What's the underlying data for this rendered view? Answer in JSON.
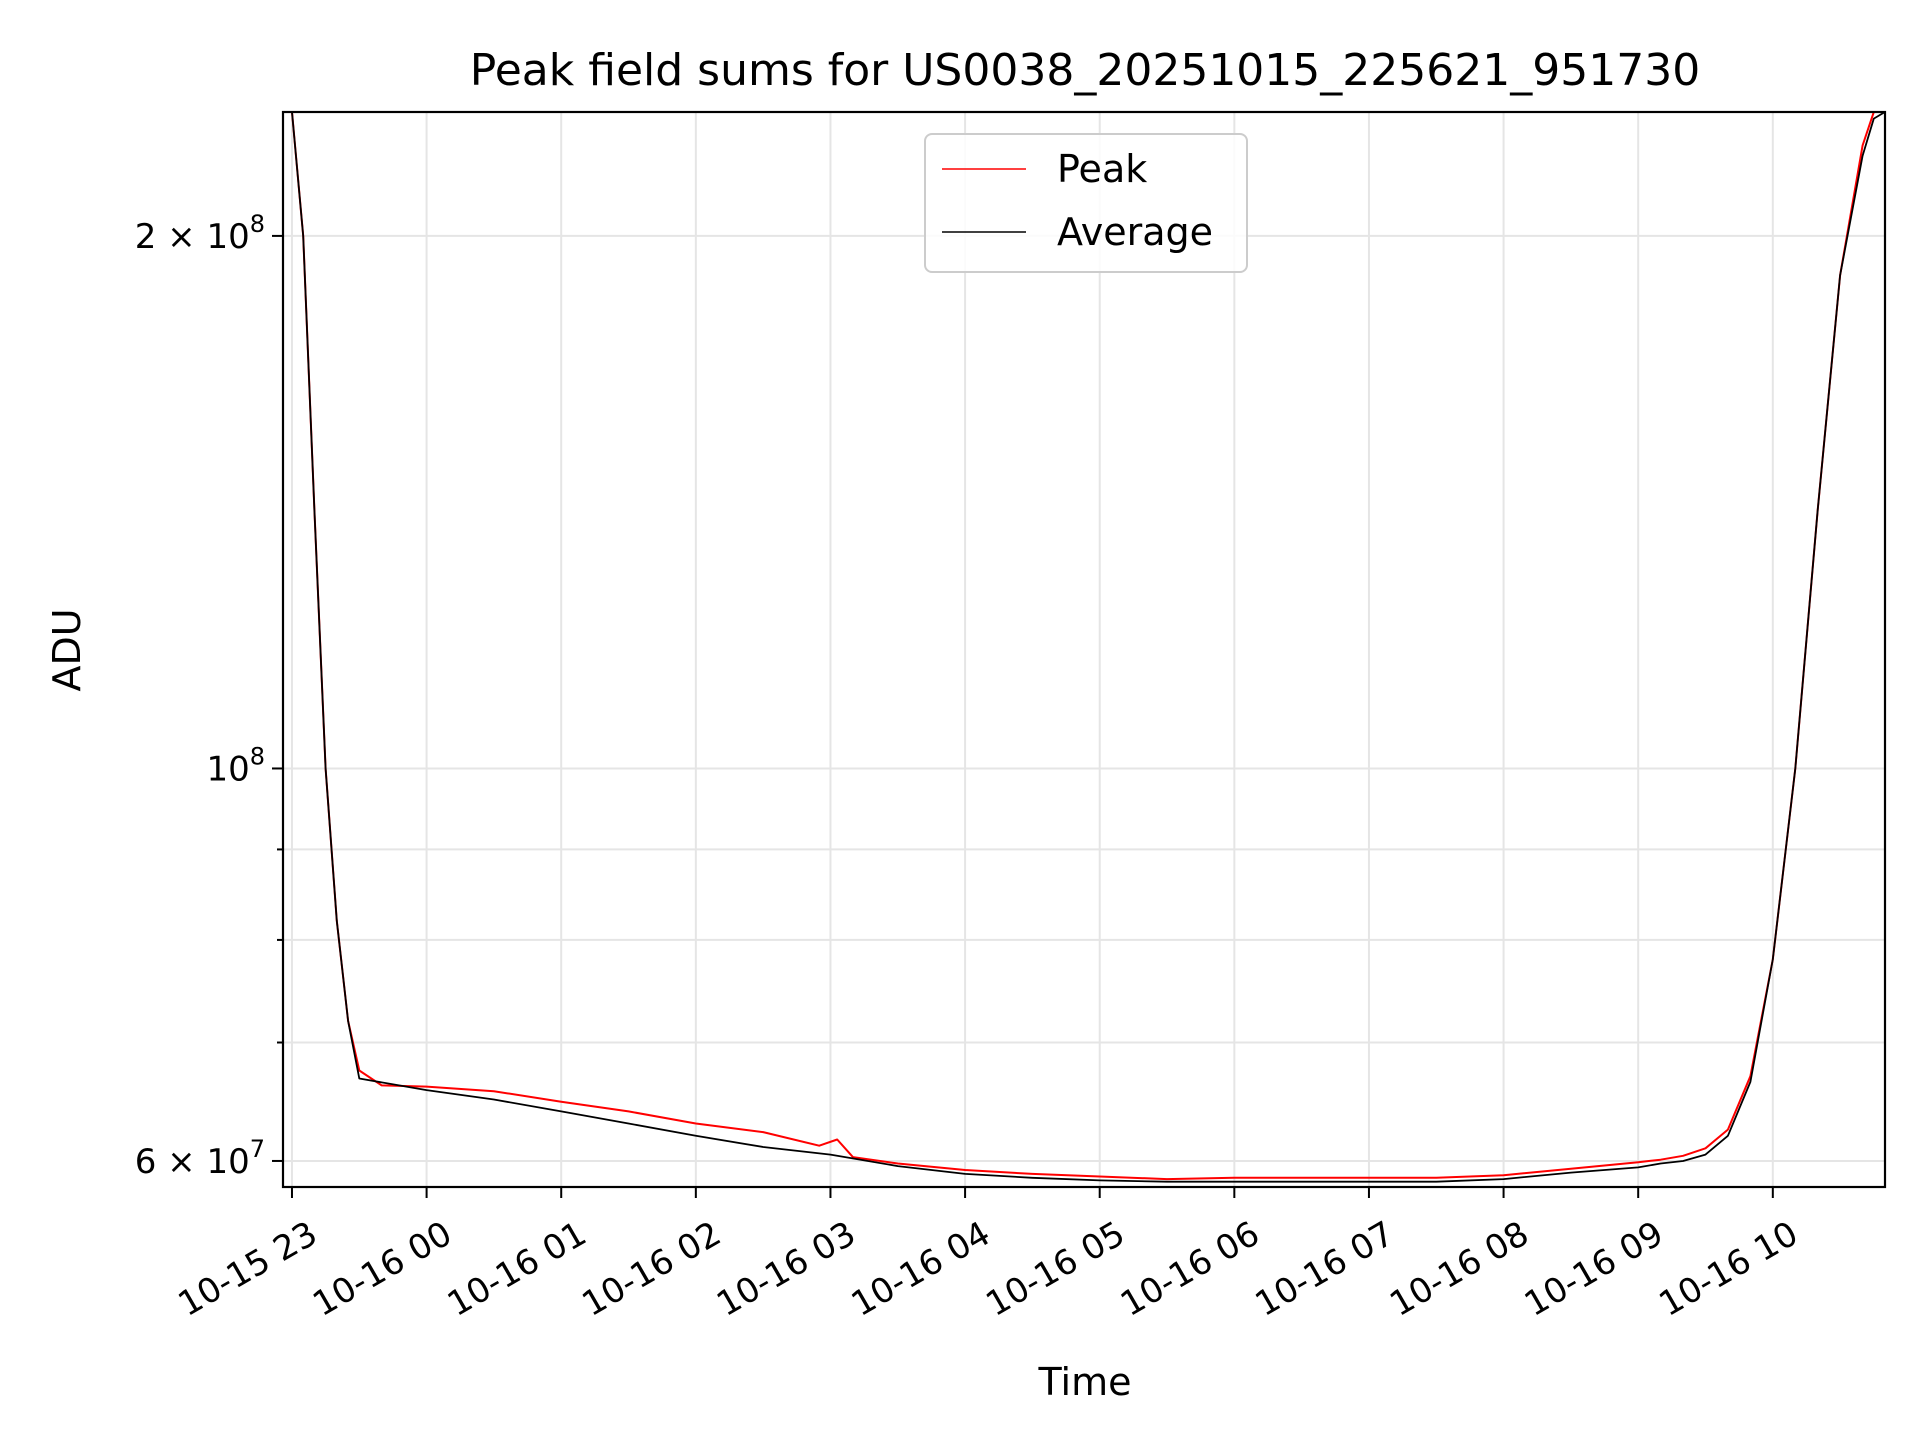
{
  "chart_data": {
    "type": "line",
    "title": "Peak field sums for US0038_20251015_225621_951730",
    "xlabel": "Time",
    "ylabel": "ADU",
    "yscale": "log",
    "ylim": [
      58000000,
      235000000
    ],
    "xlim": [
      "2025-10-15 22:56",
      "2025-10-16 10:50"
    ],
    "grid": true,
    "legend_position": "upper center",
    "x_ticks": [
      {
        "t": "2025-10-15 23:00",
        "label": "10-15 23"
      },
      {
        "t": "2025-10-16 00:00",
        "label": "10-16 00"
      },
      {
        "t": "2025-10-16 01:00",
        "label": "10-16 01"
      },
      {
        "t": "2025-10-16 02:00",
        "label": "10-16 02"
      },
      {
        "t": "2025-10-16 03:00",
        "label": "10-16 03"
      },
      {
        "t": "2025-10-16 04:00",
        "label": "10-16 04"
      },
      {
        "t": "2025-10-16 05:00",
        "label": "10-16 05"
      },
      {
        "t": "2025-10-16 06:00",
        "label": "10-16 06"
      },
      {
        "t": "2025-10-16 07:00",
        "label": "10-16 07"
      },
      {
        "t": "2025-10-16 08:00",
        "label": "10-16 08"
      },
      {
        "t": "2025-10-16 09:00",
        "label": "10-16 09"
      },
      {
        "t": "2025-10-16 10:00",
        "label": "10-16 10"
      }
    ],
    "y_major_ticks": [
      {
        "value": 60000000,
        "base": "6",
        "exp": "7",
        "mult": true
      },
      {
        "value": 100000000,
        "base": "",
        "exp": "8",
        "mult": false
      },
      {
        "value": 200000000,
        "base": "2",
        "exp": "8",
        "mult": true
      }
    ],
    "y_minor_ticks": [
      70000000,
      80000000,
      90000000
    ],
    "series": [
      {
        "name": "Peak",
        "color": "#ff0000",
        "x": [
          "2025-10-15 22:56",
          "2025-10-15 23:00",
          "2025-10-15 23:05",
          "2025-10-15 23:10",
          "2025-10-15 23:15",
          "2025-10-15 23:20",
          "2025-10-15 23:25",
          "2025-10-15 23:30",
          "2025-10-15 23:40",
          "2025-10-16 00:00",
          "2025-10-16 00:30",
          "2025-10-16 01:00",
          "2025-10-16 01:30",
          "2025-10-16 02:00",
          "2025-10-16 02:30",
          "2025-10-16 02:55",
          "2025-10-16 03:03",
          "2025-10-16 03:10",
          "2025-10-16 03:30",
          "2025-10-16 04:00",
          "2025-10-16 04:30",
          "2025-10-16 05:00",
          "2025-10-16 05:30",
          "2025-10-16 06:00",
          "2025-10-16 06:30",
          "2025-10-16 07:00",
          "2025-10-16 07:30",
          "2025-10-16 08:00",
          "2025-10-16 08:30",
          "2025-10-16 09:00",
          "2025-10-16 09:10",
          "2025-10-16 09:20",
          "2025-10-16 09:30",
          "2025-10-16 09:40",
          "2025-10-16 09:50",
          "2025-10-16 10:00",
          "2025-10-16 10:10",
          "2025-10-16 10:20",
          "2025-10-16 10:30",
          "2025-10-16 10:40",
          "2025-10-16 10:45",
          "2025-10-16 10:50"
        ],
        "y": [
          235000000,
          235000000,
          200000000,
          140000000,
          100000000,
          82000000,
          72000000,
          67500000,
          66200000,
          66100000,
          65700000,
          64800000,
          64000000,
          63000000,
          62300000,
          61200000,
          61700000,
          60300000,
          59800000,
          59300000,
          59000000,
          58800000,
          58600000,
          58700000,
          58700000,
          58700000,
          58700000,
          58900000,
          59400000,
          59900000,
          60100000,
          60400000,
          61000000,
          62500000,
          67000000,
          78000000,
          100000000,
          140000000,
          190000000,
          225000000,
          235000000,
          235000000
        ]
      },
      {
        "name": "Average",
        "color": "#000000",
        "x": [
          "2025-10-15 22:56",
          "2025-10-15 23:00",
          "2025-10-15 23:05",
          "2025-10-15 23:10",
          "2025-10-15 23:15",
          "2025-10-15 23:20",
          "2025-10-15 23:25",
          "2025-10-15 23:30",
          "2025-10-16 00:00",
          "2025-10-16 00:30",
          "2025-10-16 01:00",
          "2025-10-16 01:30",
          "2025-10-16 02:00",
          "2025-10-16 02:30",
          "2025-10-16 03:00",
          "2025-10-16 03:30",
          "2025-10-16 04:00",
          "2025-10-16 04:30",
          "2025-10-16 05:00",
          "2025-10-16 05:30",
          "2025-10-16 06:00",
          "2025-10-16 06:30",
          "2025-10-16 07:00",
          "2025-10-16 07:30",
          "2025-10-16 08:00",
          "2025-10-16 08:30",
          "2025-10-16 09:00",
          "2025-10-16 09:10",
          "2025-10-16 09:20",
          "2025-10-16 09:30",
          "2025-10-16 09:40",
          "2025-10-16 09:50",
          "2025-10-16 10:00",
          "2025-10-16 10:10",
          "2025-10-16 10:20",
          "2025-10-16 10:30",
          "2025-10-16 10:40",
          "2025-10-16 10:45",
          "2025-10-16 10:50"
        ],
        "y": [
          235000000,
          235000000,
          200000000,
          140000000,
          100000000,
          82000000,
          72000000,
          66800000,
          65800000,
          65000000,
          64000000,
          63000000,
          62000000,
          61100000,
          60500000,
          59600000,
          59000000,
          58700000,
          58500000,
          58400000,
          58400000,
          58400000,
          58400000,
          58400000,
          58600000,
          59100000,
          59500000,
          59800000,
          60000000,
          60500000,
          62000000,
          66500000,
          78000000,
          100000000,
          140000000,
          190000000,
          222000000,
          233000000,
          235000000
        ]
      }
    ]
  }
}
